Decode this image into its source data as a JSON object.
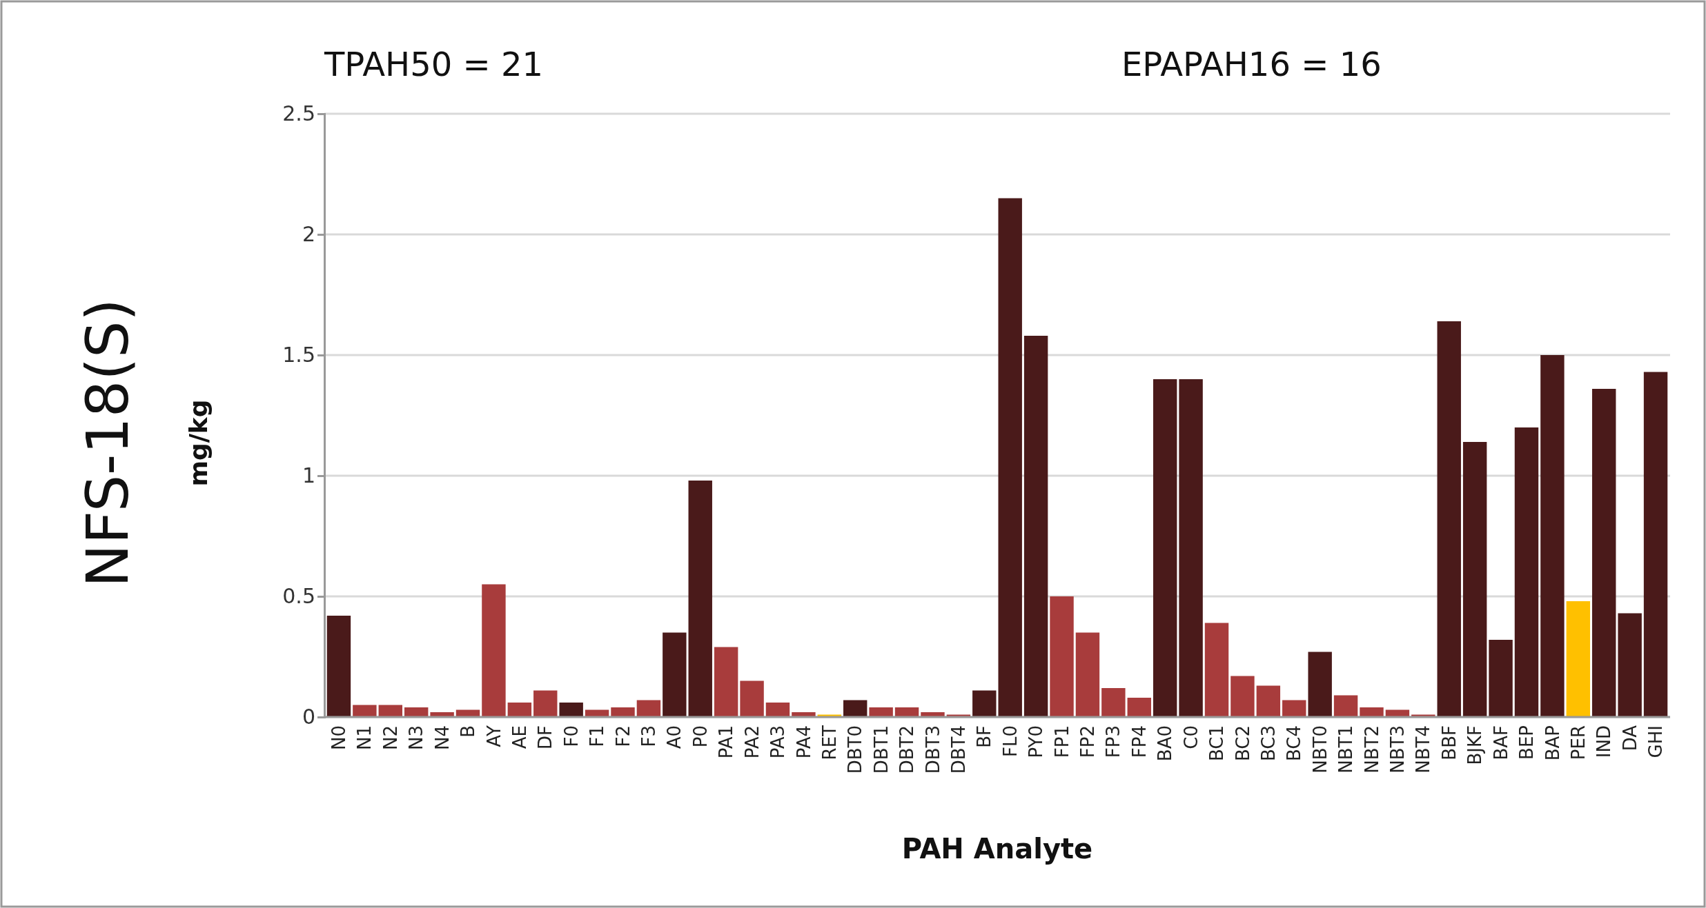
{
  "chart_data": {
    "type": "bar",
    "title": "NFS-18(S)",
    "ylabel": "mg/kg",
    "xlabel": "PAH Analyte",
    "annotations": [
      "TPAH50 = 21",
      "EPAPAH16 = 16"
    ],
    "categories": [
      "N0",
      "N1",
      "N2",
      "N3",
      "N4",
      "B",
      "AY",
      "AE",
      "DF",
      "F0",
      "F1",
      "F2",
      "F3",
      "A0",
      "P0",
      "PA1",
      "PA2",
      "PA3",
      "PA4",
      "RET",
      "DBT0",
      "DBT1",
      "DBT2",
      "DBT3",
      "DBT4",
      "BF",
      "FL0",
      "PY0",
      "FP1",
      "FP2",
      "FP3",
      "FP4",
      "BA0",
      "C0",
      "BC1",
      "BC2",
      "BC3",
      "BC4",
      "NBT0",
      "NBT1",
      "NBT2",
      "NBT3",
      "NBT4",
      "BBF",
      "BJKF",
      "BAF",
      "BEP",
      "BAP",
      "PER",
      "IND",
      "DA",
      "GHI"
    ],
    "values": [
      0.42,
      0.05,
      0.05,
      0.04,
      0.02,
      0.03,
      0.55,
      0.06,
      0.11,
      0.06,
      0.03,
      0.04,
      0.07,
      0.35,
      0.98,
      0.29,
      0.15,
      0.06,
      0.02,
      0.01,
      0.07,
      0.04,
      0.04,
      0.02,
      0.01,
      0.11,
      2.15,
      1.58,
      0.5,
      0.35,
      0.12,
      0.08,
      1.4,
      1.4,
      0.39,
      0.17,
      0.13,
      0.07,
      0.27,
      0.09,
      0.04,
      0.03,
      0.01,
      1.64,
      1.14,
      0.32,
      1.2,
      1.5,
      0.48,
      1.36,
      0.43,
      1.43
    ],
    "colors": [
      "#4a1a1a",
      "#a83c3c",
      "#a83c3c",
      "#a83c3c",
      "#a83c3c",
      "#a83c3c",
      "#a83c3c",
      "#a83c3c",
      "#a83c3c",
      "#4a1a1a",
      "#a83c3c",
      "#a83c3c",
      "#a83c3c",
      "#4a1a1a",
      "#4a1a1a",
      "#a83c3c",
      "#a83c3c",
      "#a83c3c",
      "#a83c3c",
      "#ffc000",
      "#4a1a1a",
      "#a83c3c",
      "#a83c3c",
      "#a83c3c",
      "#a83c3c",
      "#4a1a1a",
      "#4a1a1a",
      "#4a1a1a",
      "#a83c3c",
      "#a83c3c",
      "#a83c3c",
      "#a83c3c",
      "#4a1a1a",
      "#4a1a1a",
      "#a83c3c",
      "#a83c3c",
      "#a83c3c",
      "#a83c3c",
      "#4a1a1a",
      "#a83c3c",
      "#a83c3c",
      "#a83c3c",
      "#a83c3c",
      "#4a1a1a",
      "#4a1a1a",
      "#4a1a1a",
      "#4a1a1a",
      "#4a1a1a",
      "#ffc000",
      "#4a1a1a",
      "#4a1a1a",
      "#4a1a1a"
    ],
    "ylim": [
      0,
      2.5
    ],
    "yticks": [
      0,
      0.5,
      1,
      1.5,
      2,
      2.5
    ],
    "grid": "y"
  }
}
